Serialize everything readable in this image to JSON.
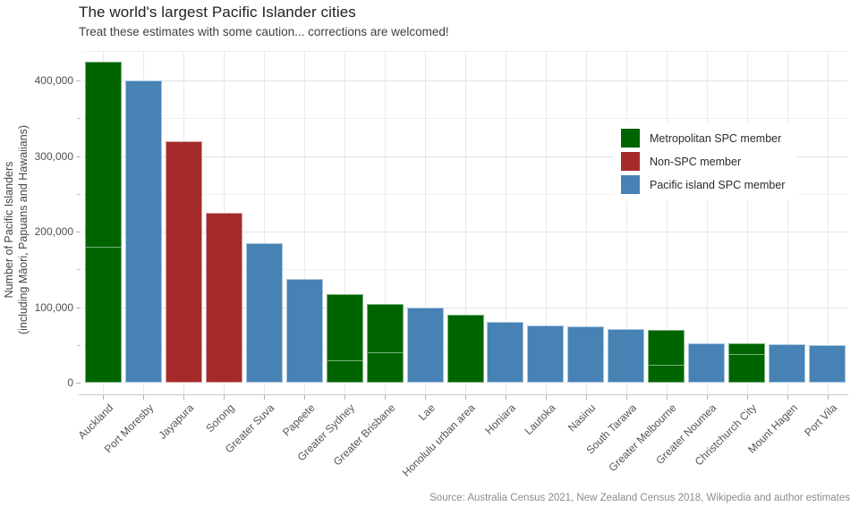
{
  "header": {
    "title": "The world's largest Pacific Islander cities",
    "subtitle": "Treat these estimates with some caution... corrections are welcomed!"
  },
  "caption": "Source: Australia Census 2021, New Zealand Census 2018, Wikipedia and author estimates",
  "y_axis": {
    "title_line1": "Number of Pacific Islanders",
    "title_line2": "(including Māori, Papuans and Hawaiians)",
    "tick_labels": [
      "0",
      "100,000",
      "200,000",
      "300,000",
      "400,000"
    ],
    "tick_values": [
      0,
      100000,
      200000,
      300000,
      400000
    ],
    "minor_tick_values": [
      50000,
      150000,
      250000,
      350000
    ]
  },
  "legend": {
    "items": [
      {
        "label": "Metropolitan SPC member",
        "color": "#006400",
        "border": "#79b179"
      },
      {
        "label": "Non-SPC member",
        "color": "#A52A2A",
        "border": "#d2a0a0"
      },
      {
        "label": "Pacific island SPC member",
        "color": "#4682B4",
        "border": "#aac6df"
      }
    ]
  },
  "chart_data": {
    "type": "bar",
    "title": "The world's largest Pacific Islander cities",
    "subtitle": "Treat these estimates with some caution... corrections are welcomed!",
    "xlabel": "",
    "ylabel": "Number of Pacific Islanders (including Māori, Papuans and Hawaiians)",
    "ylim": [
      0,
      440000
    ],
    "grid": "horizontal gridlines every 50,000 (labels every 100,000); vertical gridline at each category; white background",
    "legend_position": "inside upper-right",
    "categories": [
      "Auckland",
      "Port Moresby",
      "Jayapura",
      "Sorong",
      "Greater Suva",
      "Papeete",
      "Greater Sydney",
      "Greater Brisbane",
      "Lae",
      "Honolulu urban area",
      "Honiara",
      "Lautoka",
      "Nasinu",
      "South Tarawa",
      "Greater Melbourne",
      "Greater Noumea",
      "Christchurch City",
      "Mount Hagen",
      "Port Vila"
    ],
    "values": [
      425000,
      400000,
      320000,
      225000,
      185000,
      137000,
      117000,
      104000,
      100000,
      90000,
      80000,
      76000,
      75000,
      71000,
      70000,
      52000,
      52000,
      51000,
      50000
    ],
    "groups": [
      "Metropolitan SPC member",
      "Pacific island SPC member",
      "Non-SPC member",
      "Non-SPC member",
      "Pacific island SPC member",
      "Pacific island SPC member",
      "Metropolitan SPC member",
      "Metropolitan SPC member",
      "Pacific island SPC member",
      "Metropolitan SPC member",
      "Pacific island SPC member",
      "Pacific island SPC member",
      "Pacific island SPC member",
      "Pacific island SPC member",
      "Metropolitan SPC member",
      "Pacific island SPC member",
      "Metropolitan SPC member",
      "Pacific island SPC member",
      "Pacific island SPC member"
    ],
    "stack_boundaries": {
      "Auckland": 180000,
      "Greater Sydney": 30000,
      "Greater Brisbane": 40000,
      "Greater Melbourne": 24000,
      "Christchurch City": 38000
    }
  }
}
